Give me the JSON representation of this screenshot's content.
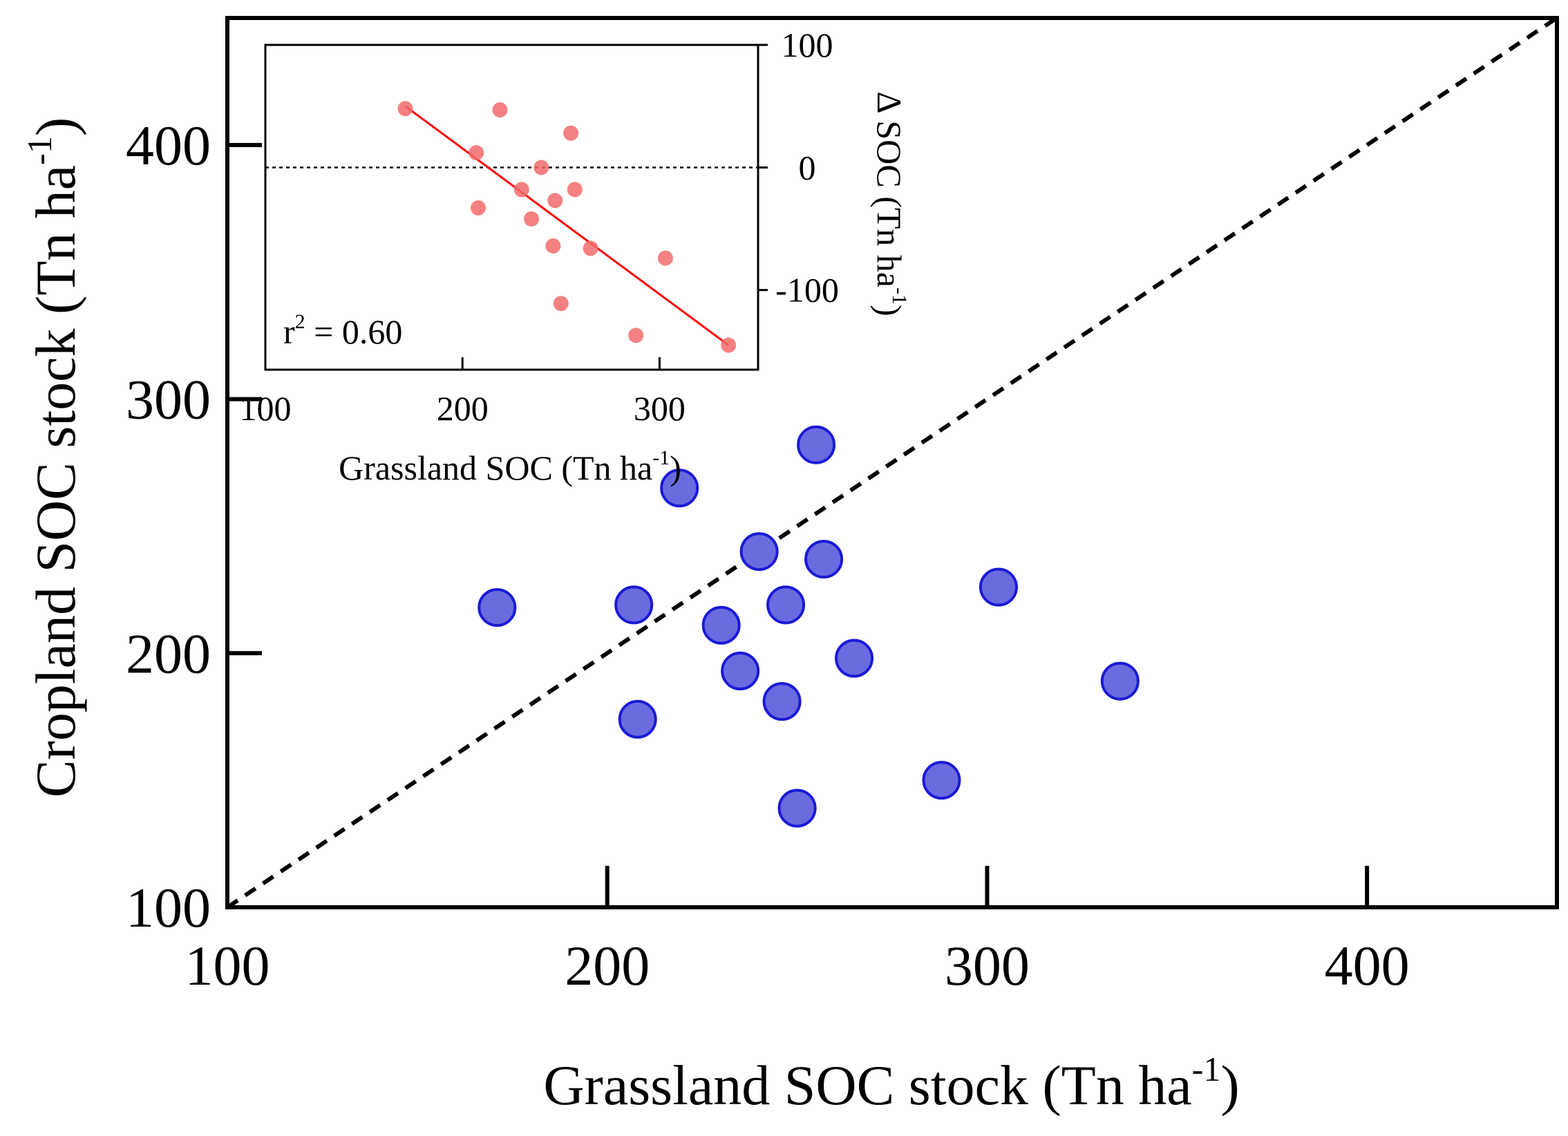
{
  "chart_data": [
    {
      "id": "main",
      "type": "scatter",
      "xlabel": {
        "text": "Grassland SOC stock (Tn ha",
        "sup": "-1",
        "close": ")"
      },
      "ylabel": {
        "text": "Cropland SOC stock  (Tn ha",
        "sup": "-1",
        "close": ")"
      },
      "xlim": [
        100,
        450
      ],
      "ylim": [
        100,
        450
      ],
      "xticks": [
        100,
        200,
        300,
        400
      ],
      "yticks": [
        100,
        200,
        300,
        400
      ],
      "xtick_labels": [
        "100",
        "200",
        "300",
        "400"
      ],
      "ytick_labels": [
        "100",
        "200",
        "300",
        "400"
      ],
      "reference_line": {
        "type": "1:1",
        "style": "dashed",
        "from": [
          100,
          100
        ],
        "to": [
          450,
          450
        ]
      },
      "point_color": "#6b6be0",
      "point_edge": "#1a1ad6",
      "points": [
        {
          "x": 171,
          "y": 218
        },
        {
          "x": 207,
          "y": 219
        },
        {
          "x": 208,
          "y": 174
        },
        {
          "x": 219,
          "y": 265
        },
        {
          "x": 230,
          "y": 211
        },
        {
          "x": 235,
          "y": 193
        },
        {
          "x": 240,
          "y": 240
        },
        {
          "x": 246,
          "y": 181
        },
        {
          "x": 247,
          "y": 219
        },
        {
          "x": 250,
          "y": 139
        },
        {
          "x": 255,
          "y": 282
        },
        {
          "x": 257,
          "y": 237
        },
        {
          "x": 265,
          "y": 198
        },
        {
          "x": 288,
          "y": 150
        },
        {
          "x": 303,
          "y": 226
        },
        {
          "x": 335,
          "y": 189
        }
      ]
    },
    {
      "id": "inset",
      "type": "scatter",
      "xlabel": {
        "text": "Grassland SOC (Tn ha",
        "sup": "-1",
        "close": ")"
      },
      "ylabel": {
        "text": "Δ SOC (Tn ha",
        "sup": "-1",
        "close": ")"
      },
      "xlim": [
        100,
        350
      ],
      "ylim": [
        -165,
        100
      ],
      "xticks": [
        100,
        200,
        300
      ],
      "yticks": [
        -100,
        0,
        100
      ],
      "xtick_labels": [
        "100",
        "200",
        "300"
      ],
      "ytick_labels": [
        "-100",
        "0",
        "100"
      ],
      "zero_line": {
        "y": 0,
        "style": "dotted"
      },
      "annotation": {
        "base": "r",
        "sup": "2",
        "rest": " = 0.60"
      },
      "point_color": "#f26b6b",
      "fit_color": "#ff0000",
      "regression": {
        "x0": 171,
        "y0": 50,
        "x1": 335,
        "y1": -145
      },
      "points": [
        {
          "x": 171,
          "y": 48
        },
        {
          "x": 207,
          "y": 12
        },
        {
          "x": 208,
          "y": -33
        },
        {
          "x": 219,
          "y": 47
        },
        {
          "x": 230,
          "y": -18
        },
        {
          "x": 235,
          "y": -42
        },
        {
          "x": 240,
          "y": 0
        },
        {
          "x": 246,
          "y": -64
        },
        {
          "x": 247,
          "y": -27
        },
        {
          "x": 250,
          "y": -111
        },
        {
          "x": 255,
          "y": 28
        },
        {
          "x": 257,
          "y": -18
        },
        {
          "x": 265,
          "y": -66
        },
        {
          "x": 288,
          "y": -137
        },
        {
          "x": 303,
          "y": -74
        },
        {
          "x": 335,
          "y": -145
        }
      ]
    }
  ]
}
